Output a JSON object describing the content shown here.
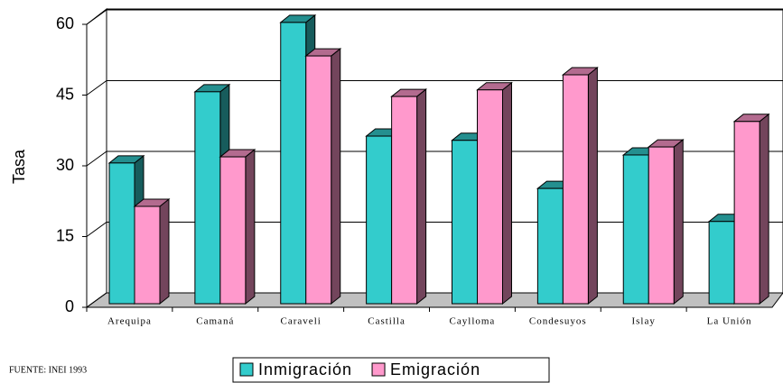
{
  "chart_data": {
    "type": "bar3d",
    "ylabel": "Tasa",
    "note": "FUENTE: INEI 1993",
    "categories": [
      "Arequipa",
      "Camaná",
      "Caraveli",
      "Castilla",
      "Caylloma",
      "Condesuyos",
      "Islay",
      "La Unión"
    ],
    "series": [
      {
        "name": "Inmigración",
        "color": "#33cccc",
        "values": [
          30.6,
          45.7,
          60.4,
          36.3,
          35.4,
          25.2,
          32.3,
          18.2
        ]
      },
      {
        "name": "Emigración",
        "color": "#ff99cc",
        "values": [
          21.4,
          31.9,
          53.3,
          44.7,
          46.1,
          49.3,
          34.0,
          39.4
        ]
      }
    ],
    "ylim": [
      0,
      60
    ],
    "yticks": [
      0,
      15,
      30,
      45,
      60
    ],
    "grid": true
  }
}
